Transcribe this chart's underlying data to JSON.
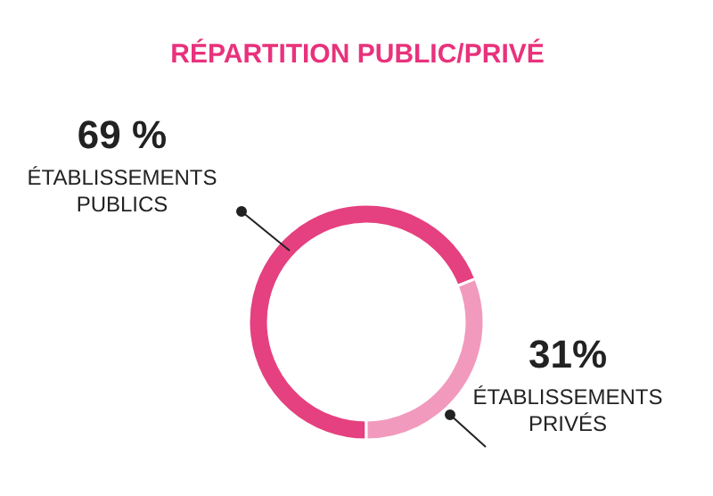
{
  "chart_data": {
    "type": "donut",
    "title": "RÉPARTITION PUBLIC/PRIVÉ",
    "categories": [
      "ÉTABLISSEMENTS PUBLICS",
      "ÉTABLISSEMENTS PRIVÉS"
    ],
    "values": [
      69,
      31
    ],
    "colors": [
      "#e5407f",
      "#f19abd"
    ],
    "value_labels": [
      "69 %",
      "31%"
    ]
  }
}
